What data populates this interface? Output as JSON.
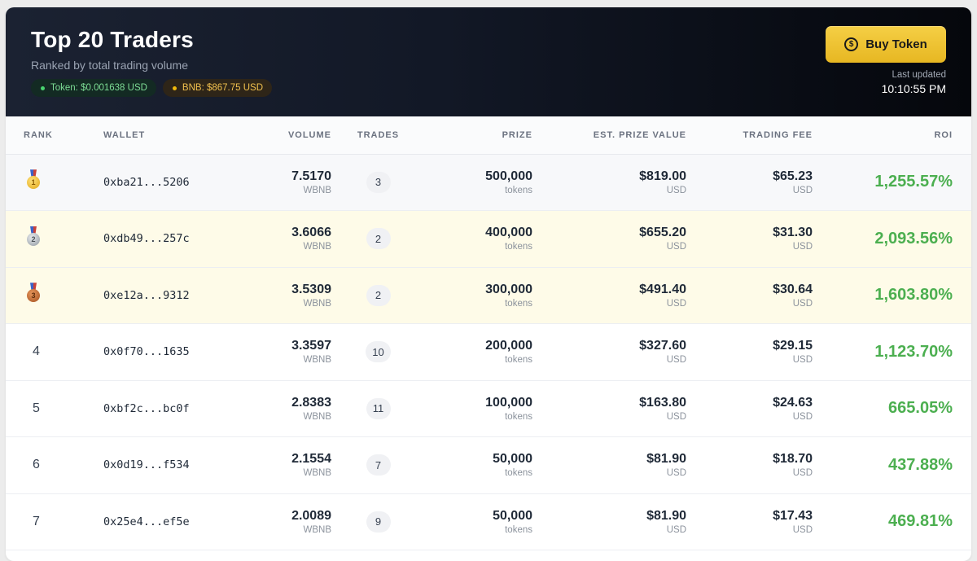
{
  "header": {
    "title": "Top 20 Traders",
    "subtitle": "Ranked by total trading volume",
    "token_price": "Token: $0.001638 USD",
    "bnb_price": "BNB: $867.75 USD",
    "buy_button": "Buy Token",
    "coin_glyph": "$",
    "last_updated_label": "Last updated",
    "last_updated_time": "10:10:55 PM"
  },
  "columns": {
    "rank": "RANK",
    "wallet": "WALLET",
    "volume": "VOLUME",
    "trades": "TRADES",
    "prize": "PRIZE",
    "est_prize_value": "EST. PRIZE VALUE",
    "trading_fee": "TRADING FEE",
    "roi": "ROI"
  },
  "units": {
    "volume": "WBNB",
    "prize": "tokens",
    "usd": "USD"
  },
  "rows": [
    {
      "rank": "1",
      "medal": "gold",
      "wallet": "0xba21...5206",
      "volume": "7.5170",
      "trades": "3",
      "prize": "500,000",
      "est_value": "$819.00",
      "fee": "$65.23",
      "roi": "1,255.57%"
    },
    {
      "rank": "2",
      "medal": "silver",
      "wallet": "0xdb49...257c",
      "volume": "3.6066",
      "trades": "2",
      "prize": "400,000",
      "est_value": "$655.20",
      "fee": "$31.30",
      "roi": "2,093.56%"
    },
    {
      "rank": "3",
      "medal": "bronze",
      "wallet": "0xe12a...9312",
      "volume": "3.5309",
      "trades": "2",
      "prize": "300,000",
      "est_value": "$491.40",
      "fee": "$30.64",
      "roi": "1,603.80%"
    },
    {
      "rank": "4",
      "medal": "",
      "wallet": "0x0f70...1635",
      "volume": "3.3597",
      "trades": "10",
      "prize": "200,000",
      "est_value": "$327.60",
      "fee": "$29.15",
      "roi": "1,123.70%"
    },
    {
      "rank": "5",
      "medal": "",
      "wallet": "0xbf2c...bc0f",
      "volume": "2.8383",
      "trades": "11",
      "prize": "100,000",
      "est_value": "$163.80",
      "fee": "$24.63",
      "roi": "665.05%"
    },
    {
      "rank": "6",
      "medal": "",
      "wallet": "0x0d19...f534",
      "volume": "2.1554",
      "trades": "7",
      "prize": "50,000",
      "est_value": "$81.90",
      "fee": "$18.70",
      "roi": "437.88%"
    },
    {
      "rank": "7",
      "medal": "",
      "wallet": "0x25e4...ef5e",
      "volume": "2.0089",
      "trades": "9",
      "prize": "50,000",
      "est_value": "$81.90",
      "fee": "$17.43",
      "roi": "469.81%"
    }
  ],
  "colors": {
    "roi_green": "#4caf50",
    "button_yellow": "#f0c330",
    "highlight_row": "#fefbe8"
  }
}
